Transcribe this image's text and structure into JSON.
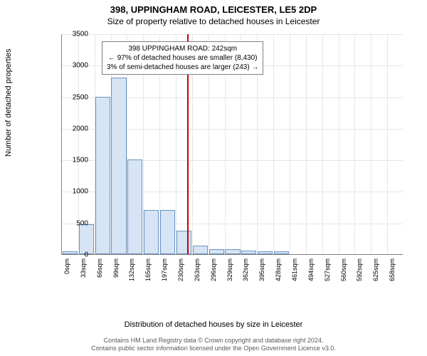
{
  "title_main": "398, UPPINGHAM ROAD, LEICESTER, LE5 2DP",
  "title_sub": "Size of property relative to detached houses in Leicester",
  "ylabel": "Number of detached properties",
  "xlabel": "Distribution of detached houses by size in Leicester",
  "attribution_line1": "Contains HM Land Registry data © Crown copyright and database right 2024.",
  "attribution_line2": "Contains public sector information licensed under the Open Government Licence v3.0.",
  "chart": {
    "type": "histogram",
    "ymax": 3500,
    "ytick_step": 500,
    "yticks": [
      0,
      500,
      1000,
      1500,
      2000,
      2500,
      3000,
      3500
    ],
    "x_categories": [
      "0sqm",
      "33sqm",
      "66sqm",
      "99sqm",
      "132sqm",
      "165sqm",
      "197sqm",
      "230sqm",
      "263sqm",
      "296sqm",
      "329sqm",
      "362sqm",
      "395sqm",
      "428sqm",
      "461sqm",
      "494sqm",
      "527sqm",
      "560sqm",
      "592sqm",
      "625sqm",
      "658sqm"
    ],
    "values": [
      50,
      480,
      2500,
      2800,
      1500,
      700,
      700,
      370,
      140,
      80,
      80,
      60,
      50,
      40,
      0,
      0,
      0,
      0,
      0,
      0,
      0
    ],
    "bar_fill": "#d6e4f5",
    "bar_stroke": "#6b93c4",
    "grid_color": "#e6e6e6",
    "axis_color": "#808080",
    "background": "#ffffff",
    "marker_value": 242,
    "x_range_max": 660,
    "marker_color": "#cc0000",
    "annotation": {
      "line1": "398 UPPINGHAM ROAD: 242sqm",
      "line2": "← 97% of detached houses are smaller (8,430)",
      "line3": "3% of semi-detached houses are larger (243) →",
      "border": "#808080",
      "bg": "#ffffff"
    },
    "label_fontsize": 11,
    "tick_fontsize": 10,
    "title_fontsize": 13
  }
}
